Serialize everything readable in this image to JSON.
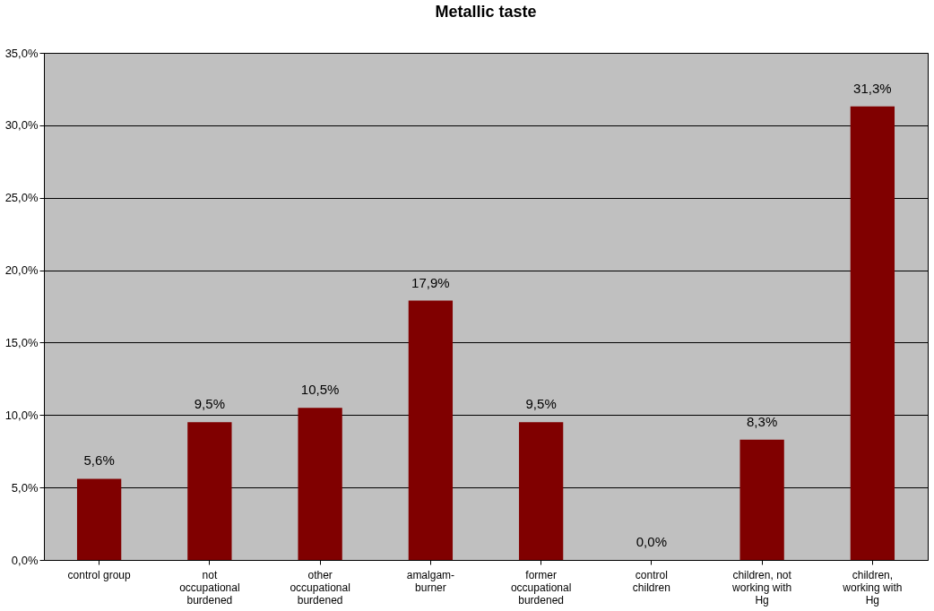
{
  "chart_data": {
    "type": "bar",
    "title": "Metallic taste",
    "categories": [
      "control group",
      "not occupational burdened",
      "other occupational burdened",
      "amalgam-burner",
      "former occupational burdened",
      "control children",
      "children, not working with Hg",
      "children, working with Hg"
    ],
    "values": [
      5.6,
      9.5,
      10.5,
      17.9,
      9.5,
      0.0,
      8.3,
      31.3
    ],
    "value_labels": [
      "5,6%",
      "9,5%",
      "10,5%",
      "17,9%",
      "9,5%",
      "0,0%",
      "8,3%",
      "31,3%"
    ],
    "color": "#800000",
    "ylim": [
      0,
      35
    ],
    "yticks": [
      {
        "value": 0,
        "label": "0,0%"
      },
      {
        "value": 5,
        "label": "5,0%"
      },
      {
        "value": 10,
        "label": "10,0%"
      },
      {
        "value": 15,
        "label": "15,0%"
      },
      {
        "value": 20,
        "label": "20,0%"
      },
      {
        "value": 25,
        "label": "25,0%"
      },
      {
        "value": 30,
        "label": "30,0%"
      },
      {
        "value": 35,
        "label": "35,0%"
      }
    ],
    "grid": "y"
  }
}
